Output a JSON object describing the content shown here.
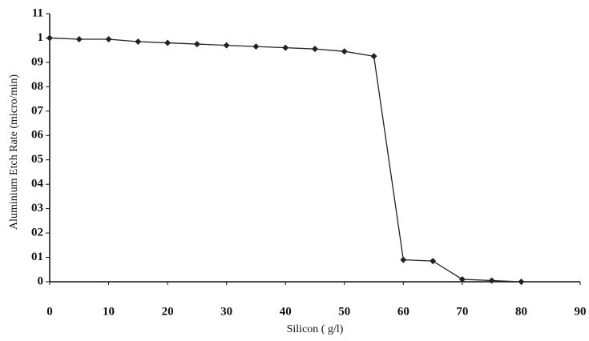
{
  "chart_data": {
    "type": "line",
    "x_label": "Silicon ( g/l)",
    "y_label": "Aluminium Etch Rate (micro/min)",
    "x": [
      0,
      5,
      10,
      15,
      20,
      25,
      30,
      35,
      40,
      45,
      50,
      55,
      60,
      65,
      70,
      75,
      80
    ],
    "series": [
      {
        "color": "#222222",
        "values": [
          1.0,
          0.995,
          0.995,
          0.985,
          0.98,
          0.975,
          0.97,
          0.965,
          0.96,
          0.955,
          0.945,
          0.925,
          0.09,
          0.085,
          0.01,
          0.005,
          0.0
        ]
      }
    ],
    "xlim": [
      0,
      90
    ],
    "xticks": [
      0,
      10,
      20,
      30,
      40,
      50,
      60,
      70,
      80,
      90
    ],
    "ylim": [
      0,
      1.1
    ],
    "yticks": [
      0,
      {
        "value": 0.1,
        "label": "01"
      },
      {
        "value": 0.2,
        "label": "02"
      },
      {
        "value": 0.3,
        "label": "03"
      },
      {
        "value": 0.4,
        "label": "04"
      },
      {
        "value": 0.5,
        "label": "05"
      },
      {
        "value": 0.6,
        "label": "06"
      },
      {
        "value": 0.7,
        "label": "07"
      },
      {
        "value": 0.8,
        "label": "08"
      },
      {
        "value": 0.9,
        "label": "09"
      },
      1,
      {
        "value": 1.1,
        "label": "11"
      }
    ]
  }
}
